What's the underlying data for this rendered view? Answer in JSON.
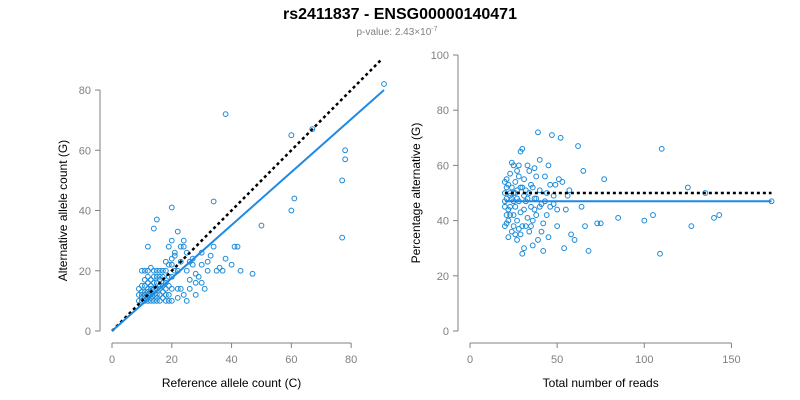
{
  "header": {
    "title": "rs2411837 - ENSG00000140471",
    "pvalue_prefix": "p-value: 2.43×10",
    "pvalue_exponent": "-7"
  },
  "colors": {
    "points": "#1a8ad8",
    "fit": "#1e88e5",
    "reference": "#000000",
    "axis": "#808080"
  },
  "chart_data": [
    {
      "type": "scatter",
      "title": "",
      "xlabel": "Reference allele count (C)",
      "ylabel": "Alternative allele count (G)",
      "xlim": [
        0,
        92
      ],
      "ylim": [
        0,
        82
      ],
      "xticks": [
        0,
        20,
        40,
        60,
        80
      ],
      "yticks": [
        0,
        20,
        40,
        60,
        80
      ],
      "grid": false,
      "reference_line": {
        "style": "dotted",
        "x": [
          0,
          90
        ],
        "y": [
          0,
          90
        ]
      },
      "fit_line": {
        "x": [
          0,
          91
        ],
        "y": [
          0,
          80
        ]
      },
      "points": [
        [
          91,
          82
        ],
        [
          78,
          60
        ],
        [
          78,
          57
        ],
        [
          77,
          50
        ],
        [
          77,
          31
        ],
        [
          67,
          67
        ],
        [
          60,
          65
        ],
        [
          61,
          44
        ],
        [
          60,
          40
        ],
        [
          50,
          35
        ],
        [
          38,
          72
        ],
        [
          34,
          43
        ],
        [
          47,
          19
        ],
        [
          41,
          28
        ],
        [
          42,
          28
        ],
        [
          43,
          20
        ],
        [
          40,
          22
        ],
        [
          38,
          24
        ],
        [
          36,
          21
        ],
        [
          37,
          20
        ],
        [
          34,
          28
        ],
        [
          33,
          25
        ],
        [
          32,
          20
        ],
        [
          32,
          23
        ],
        [
          30,
          22
        ],
        [
          30,
          26
        ],
        [
          28,
          19
        ],
        [
          28,
          16
        ],
        [
          27,
          24
        ],
        [
          27,
          22
        ],
        [
          26,
          17
        ],
        [
          26,
          23
        ],
        [
          25,
          20
        ],
        [
          25,
          26
        ],
        [
          24,
          30
        ],
        [
          24,
          28
        ],
        [
          23,
          28
        ],
        [
          23,
          23
        ],
        [
          22,
          33
        ],
        [
          22,
          20
        ],
        [
          22,
          14
        ],
        [
          21,
          26
        ],
        [
          21,
          20
        ],
        [
          21,
          25
        ],
        [
          20,
          41
        ],
        [
          20,
          30
        ],
        [
          20,
          24
        ],
        [
          20,
          22
        ],
        [
          20,
          18
        ],
        [
          20,
          14
        ],
        [
          20,
          10
        ],
        [
          19,
          28
        ],
        [
          19,
          22
        ],
        [
          19,
          18
        ],
        [
          19,
          15
        ],
        [
          19,
          12
        ],
        [
          19,
          10
        ],
        [
          18,
          23
        ],
        [
          18,
          20
        ],
        [
          18,
          16
        ],
        [
          18,
          14
        ],
        [
          18,
          12
        ],
        [
          18,
          10
        ],
        [
          17,
          20
        ],
        [
          17,
          18
        ],
        [
          17,
          16
        ],
        [
          17,
          15
        ],
        [
          17,
          13
        ],
        [
          17,
          11
        ],
        [
          16,
          20
        ],
        [
          16,
          18
        ],
        [
          16,
          17
        ],
        [
          16,
          15
        ],
        [
          16,
          14
        ],
        [
          16,
          12
        ],
        [
          16,
          10
        ],
        [
          15,
          37
        ],
        [
          15,
          20
        ],
        [
          15,
          18
        ],
        [
          15,
          16
        ],
        [
          15,
          14
        ],
        [
          15,
          12
        ],
        [
          15,
          11
        ],
        [
          15,
          10
        ],
        [
          14,
          34
        ],
        [
          14,
          20
        ],
        [
          14,
          18
        ],
        [
          14,
          16
        ],
        [
          14,
          14
        ],
        [
          14,
          12
        ],
        [
          14,
          10
        ],
        [
          13,
          21
        ],
        [
          13,
          17
        ],
        [
          13,
          15
        ],
        [
          13,
          14
        ],
        [
          13,
          13
        ],
        [
          13,
          12
        ],
        [
          13,
          11
        ],
        [
          13,
          10
        ],
        [
          12,
          28
        ],
        [
          12,
          20
        ],
        [
          12,
          18
        ],
        [
          12,
          16
        ],
        [
          12,
          14
        ],
        [
          12,
          13
        ],
        [
          12,
          12
        ],
        [
          12,
          11
        ],
        [
          12,
          10
        ],
        [
          11,
          20
        ],
        [
          11,
          17
        ],
        [
          11,
          15
        ],
        [
          11,
          13
        ],
        [
          11,
          12
        ],
        [
          11,
          11
        ],
        [
          11,
          10
        ],
        [
          10,
          20
        ],
        [
          10,
          15
        ],
        [
          10,
          13
        ],
        [
          10,
          12
        ],
        [
          10,
          11
        ],
        [
          10,
          10
        ],
        [
          9,
          14
        ],
        [
          9,
          12
        ],
        [
          9,
          10
        ],
        [
          23,
          14
        ],
        [
          24,
          12
        ],
        [
          25,
          10
        ],
        [
          26,
          14
        ],
        [
          22,
          11
        ],
        [
          28,
          12
        ],
        [
          30,
          16
        ],
        [
          35,
          20
        ],
        [
          29,
          18
        ],
        [
          31,
          14
        ]
      ]
    },
    {
      "type": "scatter",
      "title": "",
      "xlabel": "Total number of reads",
      "ylabel": "Percentage alternative (G)",
      "xlim": [
        0,
        175
      ],
      "ylim": [
        0,
        100
      ],
      "xticks": [
        0,
        50,
        100,
        150
      ],
      "yticks": [
        0,
        20,
        40,
        60,
        80,
        100
      ],
      "grid": false,
      "reference_line": {
        "style": "dotted",
        "x": [
          20,
          173
        ],
        "y": [
          50,
          50
        ]
      },
      "fit_line": {
        "x": [
          20,
          173
        ],
        "y": [
          47,
          47
        ]
      },
      "points": [
        [
          173,
          47
        ],
        [
          143,
          42
        ],
        [
          140,
          41
        ],
        [
          135,
          50
        ],
        [
          127,
          38
        ],
        [
          125,
          52
        ],
        [
          110,
          66
        ],
        [
          109,
          28
        ],
        [
          105,
          42
        ],
        [
          100,
          40
        ],
        [
          85,
          41
        ],
        [
          77,
          55
        ],
        [
          75,
          39
        ],
        [
          73,
          39
        ],
        [
          68,
          29
        ],
        [
          66,
          38
        ],
        [
          65,
          58
        ],
        [
          64,
          45
        ],
        [
          62,
          67
        ],
        [
          60,
          33
        ],
        [
          58,
          35
        ],
        [
          57,
          51
        ],
        [
          56,
          49
        ],
        [
          55,
          44
        ],
        [
          54,
          30
        ],
        [
          53,
          54
        ],
        [
          52,
          70
        ],
        [
          51,
          55
        ],
        [
          50,
          44
        ],
        [
          50,
          38
        ],
        [
          49,
          53
        ],
        [
          48,
          49
        ],
        [
          47,
          71
        ],
        [
          46,
          45
        ],
        [
          45,
          34
        ],
        [
          45,
          60
        ],
        [
          44,
          50
        ],
        [
          43,
          56
        ],
        [
          42,
          39
        ],
        [
          42,
          29
        ],
        [
          41,
          46
        ],
        [
          40,
          62
        ],
        [
          40,
          51
        ],
        [
          39,
          72
        ],
        [
          39,
          33
        ],
        [
          38,
          42
        ],
        [
          38,
          56
        ],
        [
          37,
          59
        ],
        [
          37,
          48
        ],
        [
          36,
          40
        ],
        [
          36,
          31
        ],
        [
          35,
          53
        ],
        [
          35,
          45
        ],
        [
          34,
          50
        ],
        [
          34,
          36
        ],
        [
          33,
          41
        ],
        [
          33,
          60
        ],
        [
          32,
          51
        ],
        [
          32,
          47
        ],
        [
          31,
          55
        ],
        [
          31,
          44
        ],
        [
          31,
          30
        ],
        [
          30,
          38
        ],
        [
          30,
          52
        ],
        [
          29,
          65
        ],
        [
          29,
          43
        ],
        [
          29,
          35
        ],
        [
          28,
          47
        ],
        [
          28,
          56
        ],
        [
          28,
          60
        ],
        [
          27,
          40
        ],
        [
          27,
          48
        ],
        [
          27,
          33
        ],
        [
          26,
          54
        ],
        [
          26,
          45
        ],
        [
          26,
          50
        ],
        [
          25,
          60
        ],
        [
          25,
          38
        ],
        [
          25,
          42
        ],
        [
          25,
          47
        ],
        [
          24,
          52
        ],
        [
          24,
          48
        ],
        [
          24,
          36
        ],
        [
          23,
          57
        ],
        [
          23,
          45
        ],
        [
          23,
          50
        ],
        [
          22,
          40
        ],
        [
          22,
          53
        ],
        [
          22,
          44
        ],
        [
          22,
          34
        ],
        [
          21,
          48
        ],
        [
          21,
          55
        ],
        [
          21,
          42
        ],
        [
          20,
          50
        ],
        [
          20,
          45
        ],
        [
          20,
          38
        ],
        [
          20,
          54
        ],
        [
          24,
          61
        ],
        [
          27,
          58
        ],
        [
          30,
          66
        ],
        [
          32,
          38
        ],
        [
          34,
          58
        ],
        [
          36,
          52
        ],
        [
          38,
          48
        ],
        [
          41,
          36
        ],
        [
          44,
          42
        ],
        [
          46,
          53
        ],
        [
          48,
          46
        ],
        [
          30,
          28
        ],
        [
          28,
          37
        ],
        [
          26,
          35
        ],
        [
          23,
          42
        ],
        [
          21,
          39
        ],
        [
          35,
          38
        ],
        [
          37,
          44
        ],
        [
          40,
          45
        ],
        [
          43,
          47
        ],
        [
          33,
          48
        ],
        [
          31,
          49
        ],
        [
          29,
          52
        ],
        [
          27,
          51
        ],
        [
          25,
          50
        ],
        [
          23,
          49
        ],
        [
          21,
          52
        ],
        [
          20,
          47
        ]
      ]
    }
  ]
}
